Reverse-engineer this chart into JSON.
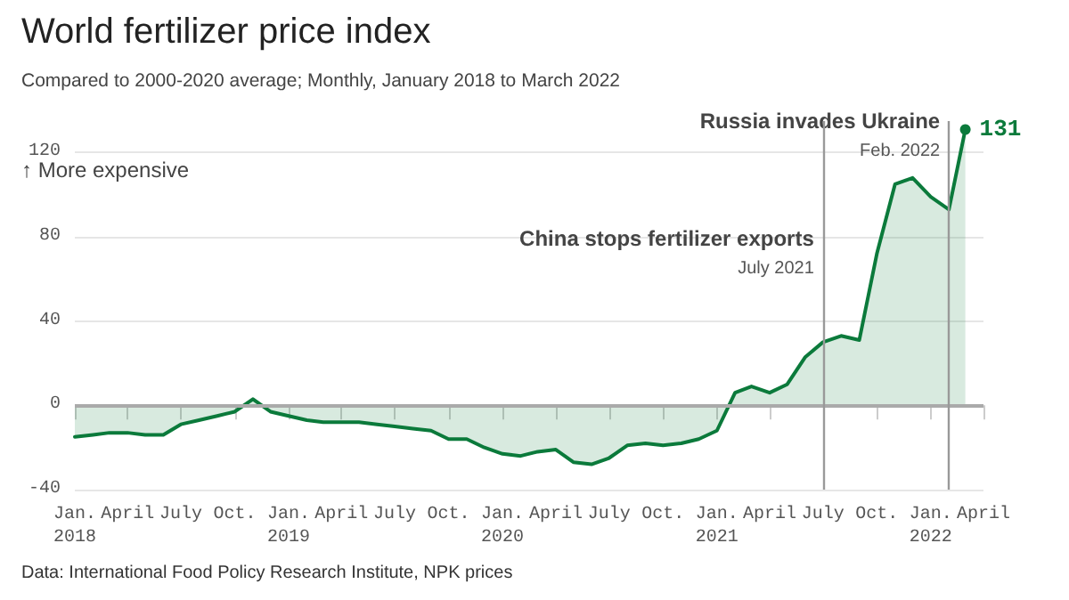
{
  "chart_data": {
    "type": "area",
    "title": "World fertilizer price index",
    "subtitle": "Compared to 2000-2020 average; Monthly, January 2018 to March 2022",
    "x": [
      "2018-01",
      "2018-02",
      "2018-03",
      "2018-04",
      "2018-05",
      "2018-06",
      "2018-07",
      "2018-08",
      "2018-09",
      "2018-10",
      "2018-11",
      "2018-12",
      "2019-01",
      "2019-02",
      "2019-03",
      "2019-04",
      "2019-05",
      "2019-06",
      "2019-07",
      "2019-08",
      "2019-09",
      "2019-10",
      "2019-11",
      "2019-12",
      "2020-01",
      "2020-02",
      "2020-03",
      "2020-04",
      "2020-05",
      "2020-06",
      "2020-07",
      "2020-08",
      "2020-09",
      "2020-10",
      "2020-11",
      "2020-12",
      "2021-01",
      "2021-02",
      "2021-03",
      "2021-04",
      "2021-05",
      "2021-06",
      "2021-07",
      "2021-08",
      "2021-09",
      "2021-10",
      "2021-11",
      "2021-12",
      "2022-01",
      "2022-02",
      "2022-03"
    ],
    "series": [
      {
        "color": "#0b7a3b",
        "values": [
          -15,
          -14,
          -13,
          -13,
          -14,
          -14,
          -9,
          -7,
          -5,
          -3,
          3,
          -3,
          -5,
          -7,
          -8,
          -8,
          -8,
          -9,
          -10,
          -11,
          -12,
          -16,
          -16,
          -20,
          -23,
          -24,
          -22,
          -21,
          -27,
          -28,
          -25,
          -19,
          -18,
          -19,
          -18,
          -16,
          -12,
          6,
          9,
          6,
          10,
          23,
          30,
          33,
          31,
          72,
          105,
          108,
          99,
          93,
          131
        ],
        "value_labels": [
          null,
          null,
          null,
          null,
          null,
          null,
          null,
          null,
          null,
          null,
          null,
          null,
          null,
          null,
          null,
          null,
          null,
          null,
          null,
          null,
          null,
          null,
          null,
          null,
          null,
          null,
          null,
          null,
          null,
          null,
          null,
          null,
          null,
          null,
          null,
          null,
          null,
          null,
          null,
          null,
          null,
          null,
          null,
          null,
          null,
          null,
          null,
          null,
          null,
          null,
          "131"
        ]
      }
    ],
    "xlim": [
      "2018-01",
      "2022-04"
    ],
    "xticks": [
      {
        "value": "2018-01",
        "label": "Jan.\n2018"
      },
      {
        "value": "2018-04",
        "label": "April"
      },
      {
        "value": "2018-07",
        "label": "July"
      },
      {
        "value": "2018-10",
        "label": "Oct."
      },
      {
        "value": "2019-01",
        "label": "Jan.\n2019"
      },
      {
        "value": "2019-04",
        "label": "April"
      },
      {
        "value": "2019-07",
        "label": "July"
      },
      {
        "value": "2019-10",
        "label": "Oct."
      },
      {
        "value": "2020-01",
        "label": "Jan.\n2020"
      },
      {
        "value": "2020-04",
        "label": "April"
      },
      {
        "value": "2020-07",
        "label": "July"
      },
      {
        "value": "2020-10",
        "label": "Oct."
      },
      {
        "value": "2021-01",
        "label": "Jan.\n2021"
      },
      {
        "value": "2021-04",
        "label": "April"
      },
      {
        "value": "2021-07",
        "label": "July"
      },
      {
        "value": "2021-10",
        "label": "Oct."
      },
      {
        "value": "2022-01",
        "label": "Jan.\n2022"
      },
      {
        "value": "2022-04",
        "label": "April"
      }
    ],
    "ylim": [
      -40,
      135
    ],
    "yticks": [
      -40,
      0,
      40,
      80,
      120
    ],
    "grid": "y",
    "marker": "none",
    "line_style": "solid",
    "ref_lines": [
      {
        "axis": "y",
        "value": 0,
        "color": "#aaaaaa"
      },
      {
        "axis": "x",
        "value": "2021-07",
        "label": "China stops fertilizer exports\nJuly 2021",
        "color": "#999999"
      },
      {
        "axis": "x",
        "value": "2022-02",
        "label": "Russia invades Ukraine\nFeb. 2022",
        "color": "#999999"
      }
    ],
    "annotations": [
      "↑ More expensive",
      "Data: International Food Policy Research Institute, NPK prices"
    ]
  }
}
